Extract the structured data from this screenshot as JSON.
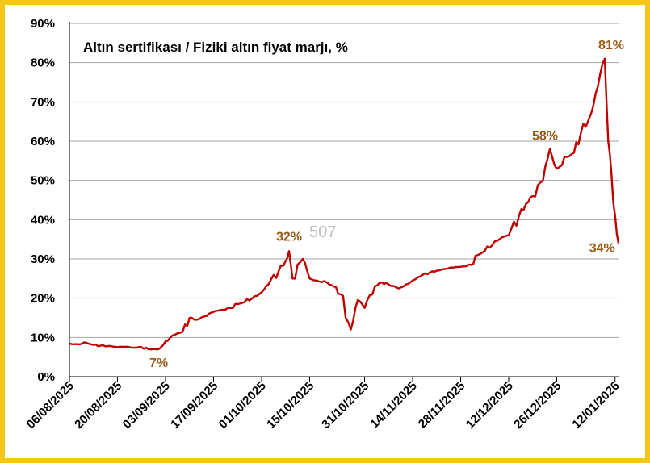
{
  "chart_data": {
    "type": "line",
    "title": "Altın sertifikası / Fiziki altın fiyat marjı, %",
    "xlabel": "",
    "ylabel": "",
    "ylim": [
      0,
      90
    ],
    "y_ticks": [
      "0%",
      "10%",
      "20%",
      "30%",
      "40%",
      "50%",
      "60%",
      "70%",
      "80%",
      "90%"
    ],
    "x_ticks": [
      "06/08/2025",
      "20/08/2025",
      "03/09/2025",
      "17/09/2025",
      "01/10/2025",
      "15/10/2025",
      "31/10/2025",
      "14/11/2025",
      "28/11/2025",
      "12/12/2025",
      "26/12/2025",
      "12/01/2026"
    ],
    "grid": true,
    "line_color": "#c00000",
    "annotation_color": "#9c5a17",
    "annotations": [
      {
        "label": "7%",
        "x": "01/09/2025",
        "y": 7
      },
      {
        "label": "32%",
        "x": "09/10/2025",
        "y": 32
      },
      {
        "label": "58%",
        "x": "24/12/2025",
        "y": 58
      },
      {
        "label": "81%",
        "x": "09/01/2026",
        "y": 81
      },
      {
        "label": "34%",
        "x": "12/01/2026",
        "y": 34
      }
    ],
    "watermark": "507",
    "series": [
      {
        "points": [
          [
            "06/08/2025",
            8.4
          ],
          [
            "08/08/2025",
            8.3
          ],
          [
            "11/08/2025",
            8.6
          ],
          [
            "13/08/2025",
            8.1
          ],
          [
            "15/08/2025",
            7.9
          ],
          [
            "18/08/2025",
            7.8
          ],
          [
            "20/08/2025",
            7.5
          ],
          [
            "22/08/2025",
            7.6
          ],
          [
            "25/08/2025",
            7.4
          ],
          [
            "27/08/2025",
            7.5
          ],
          [
            "29/08/2025",
            7.0
          ],
          [
            "01/09/2025",
            7.0
          ],
          [
            "03/09/2025",
            9.0
          ],
          [
            "05/09/2025",
            10.5
          ],
          [
            "08/09/2025",
            11.5
          ],
          [
            "10/09/2025",
            15.0
          ],
          [
            "12/09/2025",
            14.5
          ],
          [
            "15/09/2025",
            15.5
          ],
          [
            "17/09/2025",
            16.5
          ],
          [
            "19/09/2025",
            17.0
          ],
          [
            "22/09/2025",
            17.5
          ],
          [
            "24/09/2025",
            18.5
          ],
          [
            "26/09/2025",
            19.0
          ],
          [
            "29/09/2025",
            20.5
          ],
          [
            "01/10/2025",
            21.5
          ],
          [
            "03/10/2025",
            23.5
          ],
          [
            "06/10/2025",
            27.0
          ],
          [
            "08/10/2025",
            29.5
          ],
          [
            "09/10/2025",
            32.0
          ],
          [
            "10/10/2025",
            25.0
          ],
          [
            "13/10/2025",
            30.0
          ],
          [
            "15/10/2025",
            25.0
          ],
          [
            "17/10/2025",
            24.5
          ],
          [
            "20/10/2025",
            24.0
          ],
          [
            "22/10/2025",
            23.0
          ],
          [
            "24/10/2025",
            21.0
          ],
          [
            "27/10/2025",
            12.0
          ],
          [
            "29/10/2025",
            19.5
          ],
          [
            "31/10/2025",
            17.5
          ],
          [
            "03/11/2025",
            23.0
          ],
          [
            "05/11/2025",
            24.0
          ],
          [
            "07/11/2025",
            23.5
          ],
          [
            "10/11/2025",
            22.5
          ],
          [
            "12/11/2025",
            23.5
          ],
          [
            "14/11/2025",
            24.5
          ],
          [
            "17/11/2025",
            26.0
          ],
          [
            "19/11/2025",
            26.5
          ],
          [
            "21/11/2025",
            27.0
          ],
          [
            "24/11/2025",
            27.5
          ],
          [
            "26/11/2025",
            27.8
          ],
          [
            "28/11/2025",
            28.0
          ],
          [
            "01/12/2025",
            28.5
          ],
          [
            "03/12/2025",
            31.0
          ],
          [
            "05/12/2025",
            32.0
          ],
          [
            "08/12/2025",
            34.5
          ],
          [
            "10/12/2025",
            35.5
          ],
          [
            "12/12/2025",
            36.0
          ],
          [
            "15/12/2025",
            41.0
          ],
          [
            "17/12/2025",
            44.0
          ],
          [
            "19/12/2025",
            46.0
          ],
          [
            "22/12/2025",
            50.0
          ],
          [
            "24/12/2025",
            58.0
          ],
          [
            "26/12/2025",
            53.0
          ],
          [
            "29/12/2025",
            56.0
          ],
          [
            "31/12/2025",
            57.0
          ],
          [
            "02/01/2026",
            62.0
          ],
          [
            "05/01/2026",
            67.0
          ],
          [
            "07/01/2026",
            74.0
          ],
          [
            "09/01/2026",
            81.0
          ],
          [
            "10/01/2026",
            60.0
          ],
          [
            "11/01/2026",
            51.0
          ],
          [
            "12/01/2026",
            41.0
          ],
          [
            "13/01/2026",
            34.0
          ]
        ]
      }
    ]
  }
}
